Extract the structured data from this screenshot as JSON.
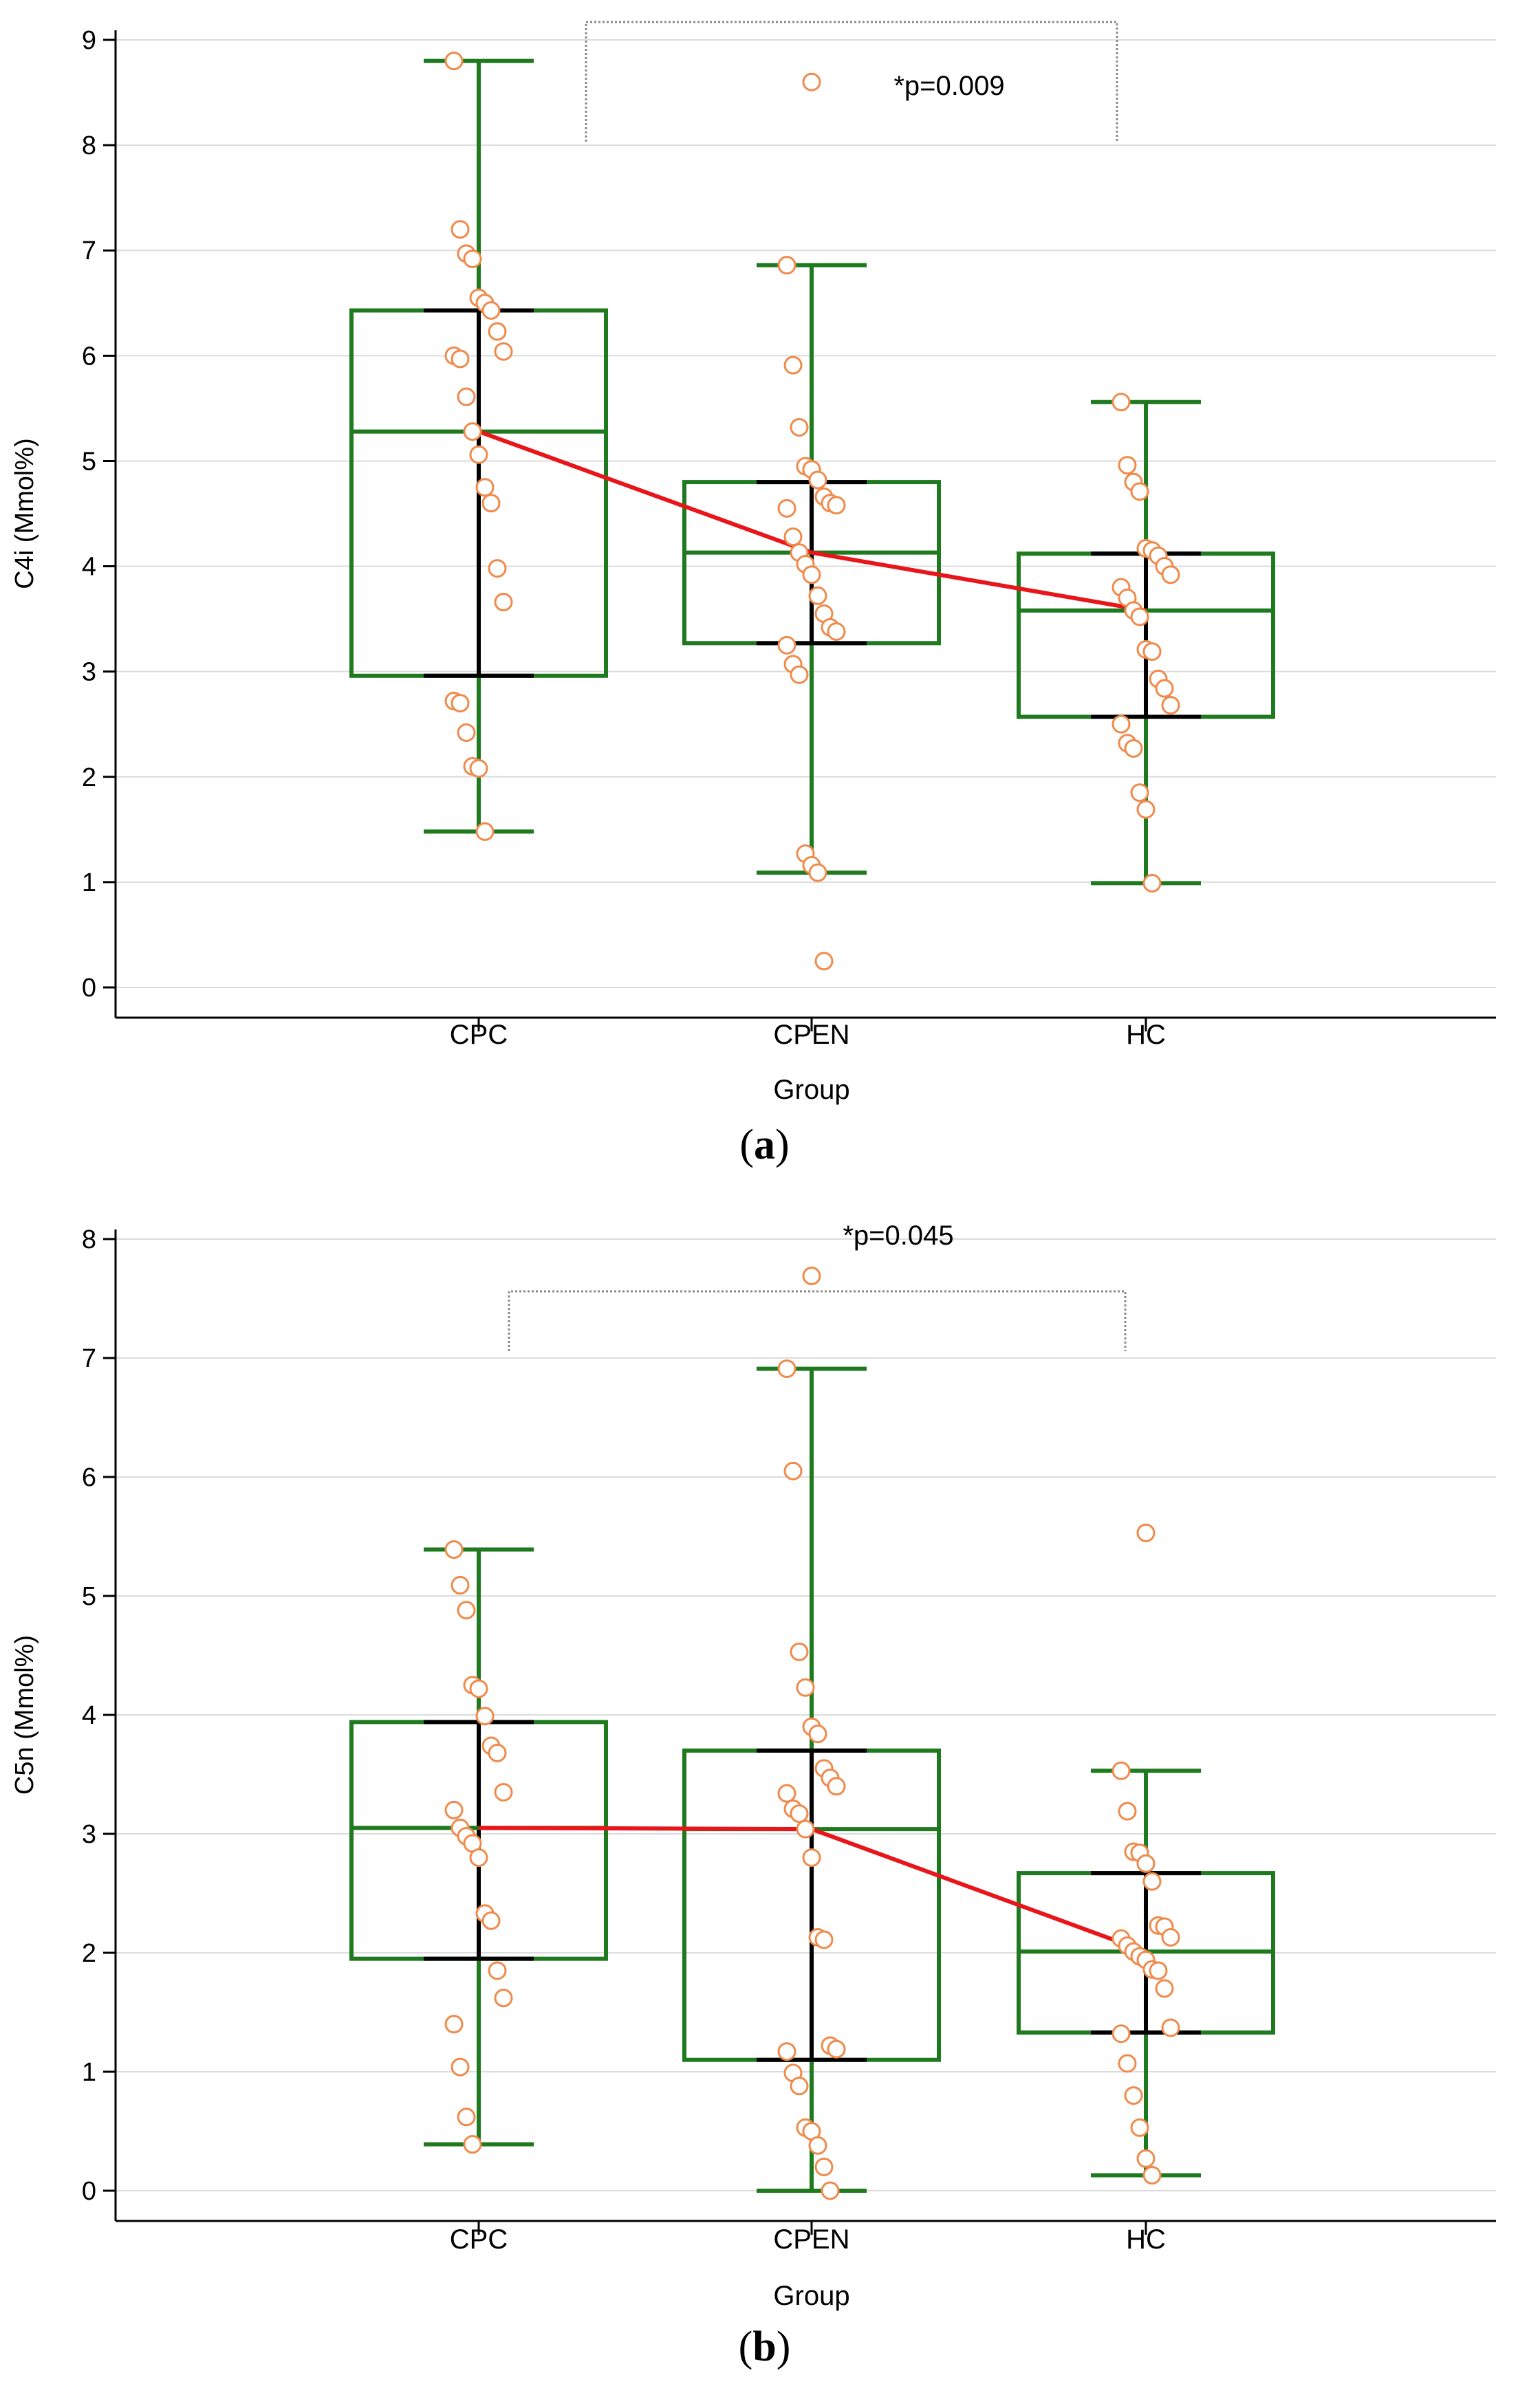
{
  "chart_data": [
    {
      "type": "box",
      "panel_label": "a",
      "xlabel": "Group",
      "ylabel": "C4i (Mmol%)",
      "categories": [
        "CPC",
        "CPEN",
        "HC"
      ],
      "ylim": [
        0,
        9
      ],
      "yticks": [
        0,
        1,
        2,
        3,
        4,
        5,
        6,
        7,
        8,
        9
      ],
      "grid": true,
      "colors": {
        "box": "#1f7a1f",
        "whisker_center": "#000000",
        "point": "#f08a4b",
        "median_line": "#e8161b",
        "grid": "#dcdcdc",
        "bracket": "#888888"
      },
      "boxes": [
        {
          "category": "CPC",
          "whisker_low": 1.48,
          "q1": 2.96,
          "median": 5.28,
          "q3": 6.43,
          "whisker_high": 8.8
        },
        {
          "category": "CPEN",
          "whisker_low": 1.09,
          "q1": 3.27,
          "median": 4.13,
          "q3": 4.8,
          "whisker_high": 6.86
        },
        {
          "category": "HC",
          "whisker_low": 0.99,
          "q1": 2.57,
          "median": 3.58,
          "q3": 4.12,
          "whisker_high": 5.56
        }
      ],
      "points": [
        {
          "category": "CPC",
          "values": [
            8.8,
            7.2,
            6.97,
            6.92,
            6.55,
            6.5,
            6.43,
            6.23,
            6.04,
            6.0,
            5.97,
            5.61,
            5.28,
            5.06,
            4.75,
            4.6,
            3.98,
            3.66,
            2.72,
            2.7,
            2.42,
            2.1,
            2.08,
            1.48
          ]
        },
        {
          "category": "CPEN",
          "values": [
            6.86,
            5.91,
            5.32,
            4.95,
            4.92,
            4.82,
            4.66,
            4.6,
            4.58,
            4.55,
            4.28,
            4.13,
            4.02,
            3.92,
            3.72,
            3.55,
            3.42,
            3.38,
            3.25,
            3.07,
            2.97,
            1.27,
            1.16,
            1.09,
            0.25
          ]
        },
        {
          "category": "HC",
          "values": [
            5.56,
            4.96,
            4.8,
            4.71,
            4.17,
            4.15,
            4.1,
            4.0,
            3.92,
            3.8,
            3.7,
            3.58,
            3.52,
            3.21,
            3.19,
            2.93,
            2.84,
            2.68,
            2.5,
            2.32,
            2.27,
            1.85,
            1.69,
            0.99
          ]
        }
      ],
      "outliers": [
        {
          "category": "CPEN",
          "value": 8.6
        }
      ],
      "bracket": {
        "from": "CPC",
        "to": "HC",
        "label": "*p=0.009"
      }
    },
    {
      "type": "box",
      "panel_label": "b",
      "xlabel": "Group",
      "ylabel": "C5n (Mmol%)",
      "categories": [
        "CPC",
        "CPEN",
        "HC"
      ],
      "ylim": [
        0,
        8
      ],
      "yticks": [
        0,
        1,
        2,
        3,
        4,
        5,
        6,
        7,
        8
      ],
      "grid": true,
      "colors": {
        "box": "#1f7a1f",
        "whisker_center": "#000000",
        "point": "#f08a4b",
        "median_line": "#e8161b",
        "grid": "#dcdcdc",
        "bracket": "#888888"
      },
      "boxes": [
        {
          "category": "CPC",
          "whisker_low": 0.39,
          "q1": 1.95,
          "median": 3.05,
          "q3": 3.94,
          "whisker_high": 5.39
        },
        {
          "category": "CPEN",
          "whisker_low": 0.0,
          "q1": 1.1,
          "median": 3.04,
          "q3": 3.7,
          "whisker_high": 6.91
        },
        {
          "category": "HC",
          "whisker_low": 0.13,
          "q1": 1.33,
          "median": 2.01,
          "q3": 2.67,
          "whisker_high": 3.53
        }
      ],
      "points": [
        {
          "category": "CPC",
          "values": [
            5.39,
            5.09,
            4.88,
            4.25,
            4.22,
            3.99,
            3.74,
            3.68,
            3.35,
            3.2,
            3.05,
            2.98,
            2.92,
            2.8,
            2.33,
            2.27,
            1.85,
            1.62,
            1.4,
            1.04,
            0.62,
            0.39
          ]
        },
        {
          "category": "CPEN",
          "values": [
            6.91,
            6.05,
            4.53,
            4.23,
            3.9,
            3.84,
            3.55,
            3.47,
            3.4,
            3.34,
            3.21,
            3.17,
            3.04,
            2.8,
            2.13,
            2.11,
            1.22,
            1.19,
            1.17,
            0.99,
            0.88,
            0.53,
            0.5,
            0.38,
            0.2,
            0.0
          ]
        },
        {
          "category": "HC",
          "values": [
            3.53,
            3.19,
            2.85,
            2.84,
            2.75,
            2.6,
            2.23,
            2.22,
            2.13,
            2.12,
            2.06,
            2.01,
            1.97,
            1.94,
            1.86,
            1.85,
            1.7,
            1.37,
            1.32,
            1.07,
            0.8,
            0.53,
            0.27,
            0.13
          ]
        }
      ],
      "outliers": [
        {
          "category": "CPEN",
          "value": 7.69
        },
        {
          "category": "HC",
          "value": 5.53
        }
      ],
      "bracket": {
        "from": "CPC",
        "to": "HC",
        "label": "*p=0.045"
      }
    }
  ]
}
